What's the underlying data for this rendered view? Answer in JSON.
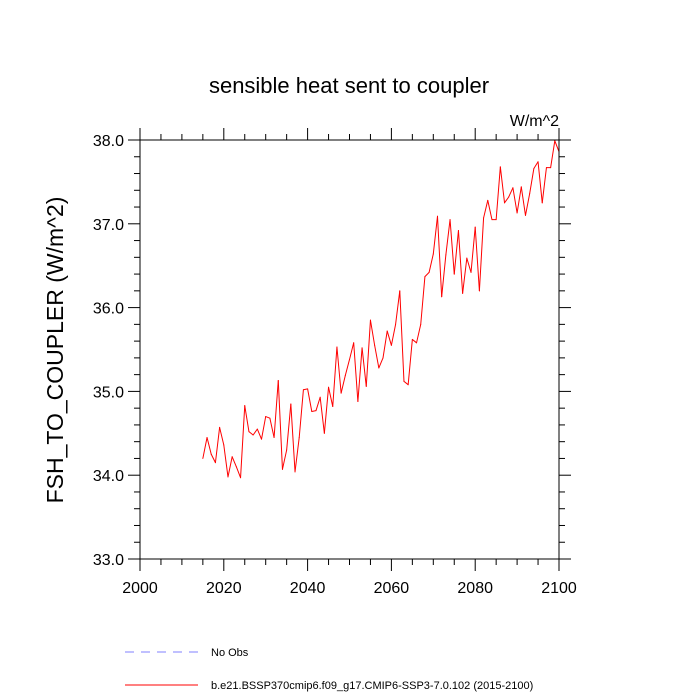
{
  "chart_data": {
    "type": "line",
    "title": "sensible heat sent to coupler",
    "units_label": "W/m^2",
    "xlabel": "",
    "ylabel": "FSH_TO_COUPLER  (W/m^2)",
    "xlim": [
      2000,
      2100
    ],
    "ylim": [
      33.0,
      38.0
    ],
    "x_ticks": [
      2000,
      2020,
      2040,
      2060,
      2080,
      2100
    ],
    "x_tick_labels": [
      "2000",
      "2020",
      "2040",
      "2060",
      "2080",
      "2100"
    ],
    "y_ticks": [
      33.0,
      34.0,
      35.0,
      36.0,
      37.0,
      38.0
    ],
    "y_tick_labels": [
      "33.0",
      "34.0",
      "35.0",
      "36.0",
      "37.0",
      "38.0"
    ],
    "grid": false,
    "legend_position": "bottom-outside",
    "series": [
      {
        "name": "b.e21.BSSP370cmip6.f09_g17.CMIP6-SSP3-7.0.102 (2015-2100)",
        "color": "#ff0000",
        "dash": "solid",
        "x": [
          2015,
          2016,
          2017,
          2018,
          2019,
          2020,
          2021,
          2022,
          2023,
          2024,
          2025,
          2026,
          2027,
          2028,
          2029,
          2030,
          2031,
          2032,
          2033,
          2034,
          2035,
          2036,
          2037,
          2038,
          2039,
          2040,
          2041,
          2042,
          2043,
          2044,
          2045,
          2046,
          2047,
          2048,
          2049,
          2050,
          2051,
          2052,
          2053,
          2054,
          2055,
          2056,
          2057,
          2058,
          2059,
          2060,
          2061,
          2062,
          2063,
          2064,
          2065,
          2066,
          2067,
          2068,
          2069,
          2070,
          2071,
          2072,
          2073,
          2074,
          2075,
          2076,
          2077,
          2078,
          2079,
          2080,
          2081,
          2082,
          2083,
          2084,
          2085,
          2086,
          2087,
          2088,
          2089,
          2090,
          2091,
          2092,
          2093,
          2094,
          2095,
          2096,
          2097,
          2098,
          2099,
          2100
        ],
        "y": [
          34.2,
          34.45,
          34.25,
          34.15,
          34.57,
          34.36,
          33.98,
          34.22,
          34.1,
          33.97,
          34.83,
          34.52,
          34.48,
          34.55,
          34.43,
          34.7,
          34.68,
          34.45,
          35.13,
          34.07,
          34.3,
          34.85,
          34.04,
          34.45,
          35.02,
          35.03,
          34.76,
          34.77,
          34.93,
          34.5,
          35.05,
          34.82,
          35.53,
          34.98,
          35.19,
          35.38,
          35.58,
          34.88,
          35.52,
          35.06,
          35.85,
          35.55,
          35.28,
          35.4,
          35.72,
          35.55,
          35.8,
          36.2,
          35.12,
          35.08,
          35.62,
          35.58,
          35.8,
          36.37,
          36.42,
          36.64,
          37.09,
          36.13,
          36.63,
          37.05,
          36.4,
          36.92,
          36.17,
          36.59,
          36.42,
          36.96,
          36.2,
          37.07,
          37.28,
          37.05,
          37.05,
          37.68,
          37.25,
          37.32,
          37.43,
          37.13,
          37.44,
          37.1,
          37.36,
          37.66,
          37.74,
          37.25,
          37.67,
          37.67,
          37.99,
          37.86
        ]
      }
    ],
    "legend": [
      {
        "label": "No Obs",
        "color": "#8080ff",
        "dash": "dashed"
      },
      {
        "label": "b.e21.BSSP370cmip6.f09_g17.CMIP6-SSP3-7.0.102 (2015-2100)",
        "color": "#ff0000",
        "dash": "solid"
      }
    ]
  }
}
